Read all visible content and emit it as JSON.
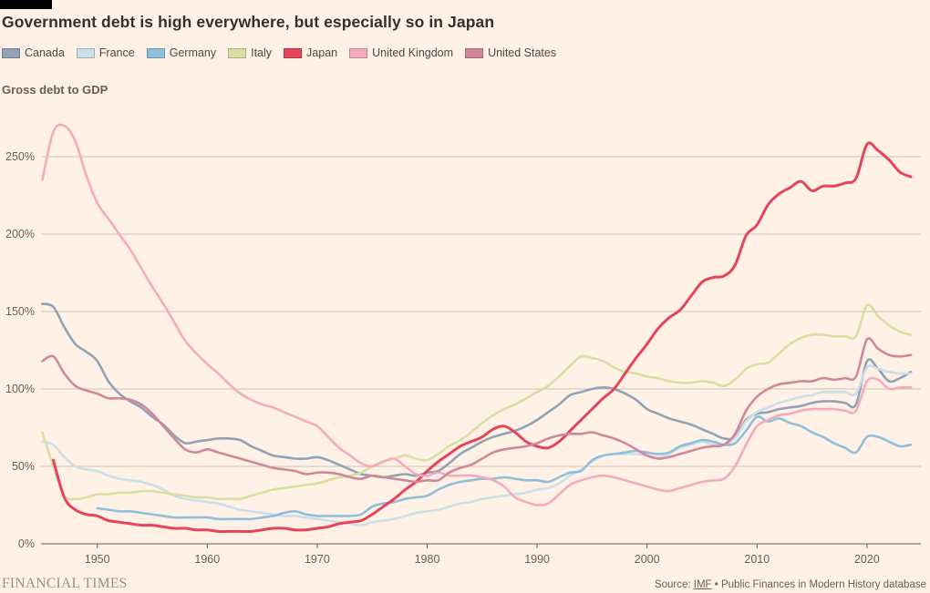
{
  "header": {
    "title": "Government debt is high everywhere, but especially so in Japan"
  },
  "subtitle": "Gross debt to GDP",
  "footer": {
    "brand": "FINANCIAL TIMES",
    "source_prefix": "Source: ",
    "source_link": "IMF",
    "source_suffix": " • Public Finances in Modern History database"
  },
  "colors": {
    "background": "#FFF1E5",
    "title_text": "#33302E",
    "legend_text": "#4D4845",
    "subtitle_text": "#655F59",
    "gridline": "#CDC2B8",
    "axis": "#66605B",
    "axis_label": "#66605B",
    "source_text": "#66605B",
    "brand_text": "#9B9083",
    "black_tab": "#000000"
  },
  "chart_data": {
    "type": "line",
    "title": "Government debt is high everywhere, but especially so in Japan",
    "ylabel": "Gross debt to GDP",
    "unit": "% of GDP",
    "grid": "horizontal",
    "legend_position": "top-left",
    "years": {
      "start": 1945,
      "end": 2024,
      "step": 1
    },
    "x_ticks": [
      1950,
      1960,
      1970,
      1980,
      1990,
      2000,
      2010,
      2020
    ],
    "y_ticks": [
      {
        "value": 0,
        "label": "0%"
      },
      {
        "value": 50,
        "label": "50%"
      },
      {
        "value": 100,
        "label": "100%"
      },
      {
        "value": 150,
        "label": "150%"
      },
      {
        "value": 200,
        "label": "200%"
      },
      {
        "value": 250,
        "label": "250%"
      }
    ],
    "ylim": [
      0,
      275
    ],
    "series": [
      {
        "name": "Canada",
        "color": "#91A3B5",
        "values": [
          155,
          153,
          140,
          129,
          124,
          118,
          105,
          97,
          92,
          88,
          82,
          77,
          70,
          65,
          66,
          67,
          68,
          68,
          67,
          63,
          60,
          57,
          56,
          55,
          55,
          56,
          54,
          51,
          48,
          45,
          44,
          43,
          44,
          45,
          44,
          46,
          47,
          52,
          58,
          62,
          66,
          69,
          71,
          73,
          76,
          80,
          85,
          90,
          96,
          98,
          100,
          101,
          100,
          97,
          93,
          87,
          84,
          81,
          79,
          77,
          74,
          71,
          68,
          69,
          80,
          84,
          85,
          87,
          88,
          89,
          91,
          92,
          92,
          91,
          90,
          118,
          113,
          105,
          107,
          111
        ]
      },
      {
        "name": "France",
        "color": "#CBDFE9",
        "values": [
          66,
          64,
          56,
          50,
          48,
          47,
          44,
          42,
          41,
          40,
          38,
          35,
          31,
          29,
          28,
          27,
          26,
          24,
          22,
          21,
          20,
          19,
          18,
          18,
          17,
          16,
          15,
          14,
          13,
          12,
          14,
          15,
          16,
          18,
          20,
          21,
          22,
          24,
          26,
          27,
          29,
          30,
          31,
          32,
          33,
          35,
          36,
          39,
          44,
          48,
          53,
          57,
          58,
          58,
          58,
          57,
          56,
          58,
          62,
          64,
          66,
          64,
          64,
          68,
          79,
          85,
          88,
          91,
          93,
          95,
          96,
          98,
          98,
          98,
          97,
          114,
          113,
          111,
          110,
          110
        ]
      },
      {
        "name": "Germany",
        "color": "#8FBFDB",
        "values": [
          null,
          null,
          null,
          null,
          null,
          23,
          22,
          21,
          21,
          20,
          19,
          18,
          17,
          17,
          17,
          17,
          16,
          16,
          16,
          16,
          17,
          18,
          20,
          21,
          19,
          18,
          18,
          18,
          18,
          19,
          24,
          26,
          27,
          29,
          30,
          31,
          35,
          38,
          40,
          41,
          42,
          42,
          43,
          42,
          41,
          41,
          40,
          43,
          46,
          47,
          54,
          57,
          58,
          59,
          60,
          59,
          58,
          59,
          63,
          65,
          67,
          66,
          64,
          65,
          73,
          82,
          79,
          81,
          78,
          76,
          72,
          69,
          65,
          62,
          59,
          69,
          69,
          66,
          63,
          64
        ]
      },
      {
        "name": "Italy",
        "color": "#D8DFA2",
        "values": [
          72,
          50,
          31,
          29,
          30,
          32,
          32,
          33,
          33,
          34,
          34,
          33,
          32,
          31,
          30,
          30,
          29,
          29,
          29,
          31,
          33,
          35,
          36,
          37,
          38,
          39,
          41,
          43,
          44,
          46,
          50,
          53,
          55,
          57,
          55,
          54,
          58,
          63,
          67,
          72,
          78,
          83,
          87,
          90,
          94,
          98,
          102,
          108,
          115,
          121,
          120,
          118,
          114,
          111,
          110,
          108,
          107,
          105,
          104,
          104,
          105,
          104,
          102,
          106,
          113,
          116,
          117,
          123,
          129,
          133,
          135,
          135,
          134,
          134,
          134,
          154,
          147,
          141,
          137,
          135
        ]
      },
      {
        "name": "Japan",
        "color": "#E5455A",
        "values": [
          null,
          54,
          30,
          22,
          19,
          18,
          15,
          14,
          13,
          12,
          12,
          11,
          10,
          10,
          9,
          9,
          8,
          8,
          8,
          8,
          9,
          10,
          10,
          9,
          9,
          10,
          11,
          13,
          14,
          15,
          19,
          24,
          29,
          35,
          40,
          47,
          53,
          58,
          63,
          66,
          69,
          74,
          76,
          72,
          66,
          63,
          62,
          66,
          73,
          80,
          87,
          94,
          100,
          110,
          120,
          129,
          139,
          146,
          151,
          160,
          169,
          172,
          173,
          180,
          199,
          206,
          219,
          226,
          230,
          234,
          228,
          231,
          231,
          233,
          236,
          258,
          254,
          248,
          240,
          237
        ]
      },
      {
        "name": "United Kingdom",
        "color": "#F5ABBF",
        "values": [
          235,
          266,
          270,
          260,
          238,
          220,
          210,
          200,
          190,
          178,
          166,
          155,
          143,
          131,
          123,
          116,
          110,
          103,
          97,
          93,
          90,
          88,
          85,
          82,
          79,
          76,
          69,
          62,
          57,
          52,
          50,
          53,
          55,
          50,
          45,
          44,
          46,
          44,
          44,
          44,
          43,
          41,
          37,
          30,
          27,
          25,
          26,
          32,
          38,
          41,
          43,
          44,
          43,
          41,
          39,
          37,
          35,
          34,
          36,
          38,
          40,
          41,
          42,
          50,
          64,
          76,
          80,
          83,
          84,
          86,
          87,
          87,
          87,
          86,
          86,
          105,
          106,
          100,
          101,
          101
        ]
      },
      {
        "name": "United States",
        "color": "#D1879B",
        "values": [
          118,
          121,
          110,
          102,
          99,
          97,
          94,
          94,
          93,
          90,
          84,
          76,
          68,
          61,
          59,
          61,
          59,
          57,
          55,
          53,
          51,
          49,
          48,
          47,
          45,
          46,
          46,
          45,
          43,
          42,
          44,
          43,
          42,
          41,
          40,
          41,
          41,
          46,
          49,
          51,
          55,
          59,
          61,
          62,
          63,
          65,
          68,
          70,
          71,
          71,
          72,
          70,
          68,
          65,
          61,
          57,
          55,
          56,
          58,
          60,
          62,
          63,
          64,
          71,
          86,
          95,
          100,
          103,
          104,
          105,
          105,
          107,
          106,
          107,
          108,
          132,
          126,
          122,
          121,
          122
        ]
      }
    ]
  }
}
